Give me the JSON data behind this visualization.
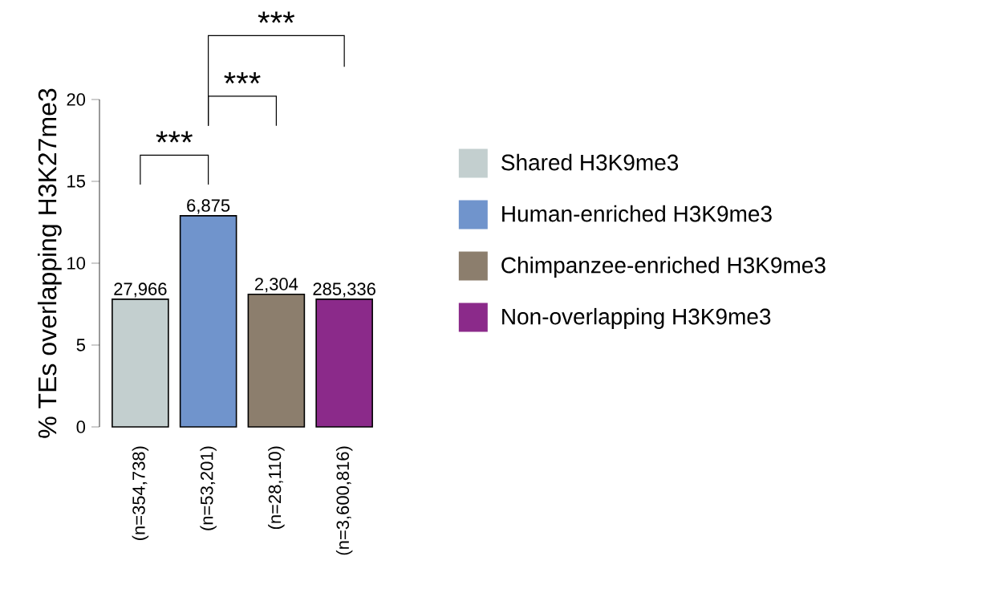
{
  "chart_data": {
    "type": "bar",
    "ylabel": "% TEs overlapping H3K27me3",
    "categories": [
      "(n=354,738)",
      "(n=53,201)",
      "(n=28,110)",
      "(n=3,600,816)"
    ],
    "series": [
      {
        "name": "Shared H3K9me3",
        "color": "#c3cfcf",
        "values": [
          7.8,
          null,
          null,
          null
        ]
      },
      {
        "name": "Human-enriched H3K9me3",
        "color": "#7094cc",
        "values": [
          null,
          12.9,
          null,
          null
        ]
      },
      {
        "name": "Chimpanzee-enriched H3K9me3",
        "color": "#8c7e6d",
        "values": [
          null,
          null,
          8.1,
          null
        ]
      },
      {
        "name": "Non-overlapping H3K9me3",
        "color": "#8b2a8a",
        "values": [
          null,
          null,
          null,
          7.8
        ]
      }
    ],
    "ylim": [
      0,
      20
    ],
    "yticks": [
      0,
      5,
      10,
      15,
      20
    ],
    "legend": "right",
    "annotations": [
      "***",
      "***",
      "***",
      {
        "text": "27,966",
        "x": "(n=354,738)",
        "y": 7.8
      },
      {
        "text": "6,875",
        "x": "(n=53,201)",
        "y": 12.9
      },
      {
        "text": "2,304",
        "x": "(n=28,110)",
        "y": 8.1
      },
      {
        "text": "285,336",
        "x": "(n=3,600,816)",
        "y": 7.8
      }
    ]
  }
}
